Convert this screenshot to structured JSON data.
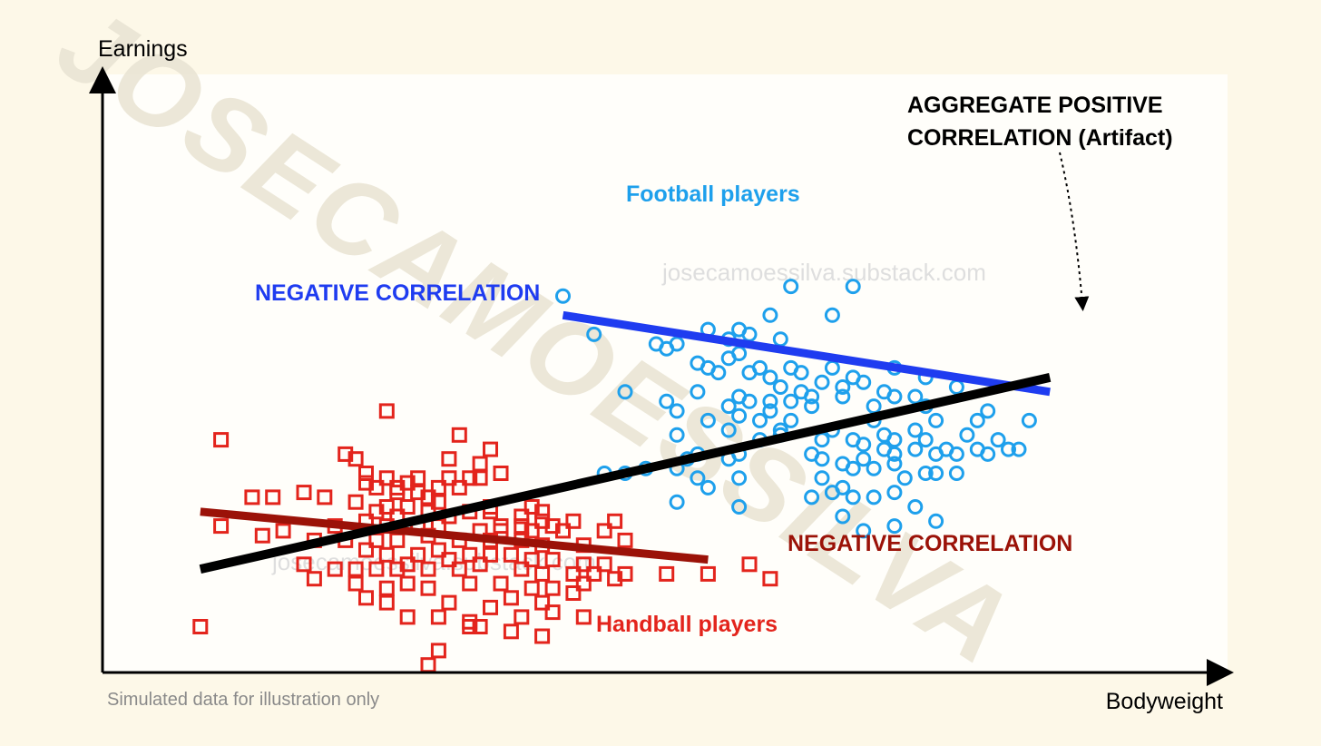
{
  "chart_data": {
    "type": "scatter",
    "title": "",
    "xlabel": "Bodyweight",
    "ylabel": "Earnings",
    "xlim": [
      0,
      100
    ],
    "ylim": [
      0,
      100
    ],
    "grid": false,
    "note": "Simulated data for illustration only",
    "watermark_big": "JOSECAMOESSILVA",
    "watermark_small": "josecamoessilva.substack.com",
    "series": [
      {
        "name": "Football players",
        "marker": "circle",
        "color": "#1ea0ec",
        "points": [
          [
            44,
            78
          ],
          [
            66,
            80
          ],
          [
            72,
            80
          ],
          [
            64,
            74
          ],
          [
            70,
            74
          ],
          [
            47,
            70
          ],
          [
            58,
            71
          ],
          [
            61,
            71
          ],
          [
            62,
            70
          ],
          [
            60,
            69
          ],
          [
            65,
            69
          ],
          [
            53,
            68
          ],
          [
            55,
            68
          ],
          [
            54,
            67
          ],
          [
            61,
            66
          ],
          [
            60,
            65
          ],
          [
            57,
            64
          ],
          [
            63,
            63
          ],
          [
            58,
            63
          ],
          [
            66,
            63
          ],
          [
            70,
            63
          ],
          [
            76,
            63
          ],
          [
            59,
            62
          ],
          [
            62,
            62
          ],
          [
            64,
            61
          ],
          [
            72,
            61
          ],
          [
            67,
            62
          ],
          [
            69,
            60
          ],
          [
            65,
            59
          ],
          [
            79,
            61
          ],
          [
            73,
            60
          ],
          [
            71,
            59
          ],
          [
            50,
            58
          ],
          [
            57,
            58
          ],
          [
            67,
            58
          ],
          [
            75,
            58
          ],
          [
            61,
            57
          ],
          [
            68,
            57
          ],
          [
            76,
            57
          ],
          [
            78,
            57
          ],
          [
            82,
            59
          ],
          [
            54,
            56
          ],
          [
            62,
            56
          ],
          [
            64,
            56
          ],
          [
            66,
            56
          ],
          [
            71,
            57
          ],
          [
            55,
            54
          ],
          [
            60,
            55
          ],
          [
            64,
            54
          ],
          [
            68,
            55
          ],
          [
            74,
            55
          ],
          [
            79,
            55
          ],
          [
            85,
            54
          ],
          [
            58,
            52
          ],
          [
            61,
            53
          ],
          [
            63,
            52
          ],
          [
            66,
            52
          ],
          [
            74,
            52
          ],
          [
            80,
            52
          ],
          [
            84,
            52
          ],
          [
            89,
            52
          ],
          [
            60,
            50
          ],
          [
            65,
            50
          ],
          [
            70,
            50
          ],
          [
            75,
            49
          ],
          [
            78,
            50
          ],
          [
            83,
            49
          ],
          [
            55,
            49
          ],
          [
            63,
            48
          ],
          [
            65,
            49
          ],
          [
            69,
            48
          ],
          [
            72,
            48
          ],
          [
            76,
            48
          ],
          [
            79,
            48
          ],
          [
            86,
            48
          ],
          [
            73,
            47
          ],
          [
            75,
            46
          ],
          [
            78,
            46
          ],
          [
            81,
            46
          ],
          [
            84,
            46
          ],
          [
            87,
            46
          ],
          [
            88,
            46
          ],
          [
            76,
            45
          ],
          [
            80,
            45
          ],
          [
            82,
            45
          ],
          [
            57,
            45
          ],
          [
            61,
            45
          ],
          [
            68,
            45
          ],
          [
            69,
            44
          ],
          [
            73,
            44
          ],
          [
            76,
            43
          ],
          [
            85,
            45
          ],
          [
            56,
            44
          ],
          [
            60,
            44
          ],
          [
            71,
            43
          ],
          [
            74,
            42
          ],
          [
            72,
            42
          ],
          [
            79,
            41
          ],
          [
            80,
            41
          ],
          [
            82,
            41
          ],
          [
            52,
            42
          ],
          [
            55,
            42
          ],
          [
            50,
            41
          ],
          [
            48,
            41
          ],
          [
            57,
            40
          ],
          [
            61,
            40
          ],
          [
            69,
            40
          ],
          [
            71,
            38
          ],
          [
            77,
            40
          ],
          [
            70,
            37
          ],
          [
            76,
            37
          ],
          [
            58,
            38
          ],
          [
            72,
            36
          ],
          [
            68,
            36
          ],
          [
            74,
            36
          ],
          [
            78,
            34
          ],
          [
            55,
            35
          ],
          [
            61,
            34
          ],
          [
            71,
            32
          ],
          [
            80,
            31
          ],
          [
            76,
            30
          ],
          [
            73,
            29
          ]
        ]
      },
      {
        "name": "Handball players",
        "marker": "square",
        "color": "#e3241c",
        "points": [
          [
            27,
            54
          ],
          [
            11,
            48
          ],
          [
            34,
            49
          ],
          [
            37,
            46
          ],
          [
            23,
            45
          ],
          [
            24,
            44
          ],
          [
            33,
            44
          ],
          [
            36,
            43
          ],
          [
            25,
            41
          ],
          [
            38,
            41
          ],
          [
            27,
            40
          ],
          [
            30,
            40
          ],
          [
            33,
            40
          ],
          [
            35,
            40
          ],
          [
            36,
            40
          ],
          [
            25,
            39
          ],
          [
            26,
            38
          ],
          [
            28,
            38
          ],
          [
            29,
            39
          ],
          [
            32,
            38
          ],
          [
            34,
            38
          ],
          [
            14,
            36
          ],
          [
            16,
            36
          ],
          [
            19,
            37
          ],
          [
            21,
            36
          ],
          [
            28,
            37
          ],
          [
            30,
            37
          ],
          [
            31,
            36
          ],
          [
            24,
            35
          ],
          [
            27,
            34
          ],
          [
            29,
            34
          ],
          [
            32,
            35
          ],
          [
            35,
            33
          ],
          [
            37,
            34
          ],
          [
            41,
            34
          ],
          [
            42,
            33
          ],
          [
            26,
            33
          ],
          [
            28,
            32
          ],
          [
            31,
            33
          ],
          [
            33,
            32
          ],
          [
            37,
            33
          ],
          [
            40,
            32
          ],
          [
            42,
            31
          ],
          [
            45,
            31
          ],
          [
            49,
            31
          ],
          [
            38,
            30
          ],
          [
            40,
            30
          ],
          [
            43,
            30
          ],
          [
            11,
            30
          ],
          [
            17,
            29
          ],
          [
            22,
            30
          ],
          [
            25,
            31
          ],
          [
            27,
            30
          ],
          [
            30,
            30
          ],
          [
            32,
            30
          ],
          [
            36,
            29
          ],
          [
            38,
            29
          ],
          [
            41,
            29
          ],
          [
            44,
            29
          ],
          [
            48,
            29
          ],
          [
            15,
            28
          ],
          [
            20,
            27
          ],
          [
            23,
            27
          ],
          [
            26,
            27
          ],
          [
            28,
            27
          ],
          [
            31,
            28
          ],
          [
            34,
            27
          ],
          [
            37,
            27
          ],
          [
            40,
            27
          ],
          [
            42,
            26
          ],
          [
            46,
            26
          ],
          [
            50,
            27
          ],
          [
            25,
            25
          ],
          [
            27,
            24
          ],
          [
            30,
            24
          ],
          [
            32,
            25
          ],
          [
            35,
            24
          ],
          [
            37,
            24
          ],
          [
            39,
            24
          ],
          [
            41,
            23
          ],
          [
            43,
            23
          ],
          [
            46,
            22
          ],
          [
            48,
            22
          ],
          [
            33,
            23
          ],
          [
            29,
            22
          ],
          [
            31,
            21
          ],
          [
            34,
            21
          ],
          [
            19,
            22
          ],
          [
            22,
            21
          ],
          [
            24,
            21
          ],
          [
            26,
            21
          ],
          [
            28,
            21
          ],
          [
            36,
            22
          ],
          [
            40,
            21
          ],
          [
            42,
            20
          ],
          [
            45,
            20
          ],
          [
            47,
            20
          ],
          [
            50,
            20
          ],
          [
            54,
            20
          ],
          [
            58,
            20
          ],
          [
            20,
            19
          ],
          [
            24,
            18
          ],
          [
            27,
            17
          ],
          [
            29,
            18
          ],
          [
            31,
            17
          ],
          [
            35,
            18
          ],
          [
            38,
            18
          ],
          [
            41,
            17
          ],
          [
            43,
            17
          ],
          [
            46,
            18
          ],
          [
            49,
            19
          ],
          [
            64,
            19
          ],
          [
            62,
            22
          ],
          [
            39,
            15
          ],
          [
            42,
            14
          ],
          [
            45,
            16
          ],
          [
            25,
            15
          ],
          [
            27,
            14
          ],
          [
            33,
            14
          ],
          [
            37,
            13
          ],
          [
            40,
            11
          ],
          [
            43,
            12
          ],
          [
            46,
            11
          ],
          [
            35,
            10
          ],
          [
            36,
            9
          ],
          [
            29,
            11
          ],
          [
            32,
            11
          ],
          [
            35,
            9
          ],
          [
            39,
            8
          ],
          [
            9,
            9
          ],
          [
            42,
            7
          ],
          [
            32,
            4
          ],
          [
            31,
            1
          ]
        ]
      }
    ],
    "lines": [
      {
        "name": "football-trend",
        "color": "#1f3cf0",
        "x": [
          44,
          91
        ],
        "y": [
          74,
          58
        ]
      },
      {
        "name": "handball-trend",
        "color": "#9b1208",
        "x": [
          9,
          58
        ],
        "y": [
          33,
          23
        ]
      },
      {
        "name": "aggregate-trend",
        "color": "#000000",
        "x": [
          9,
          91
        ],
        "y": [
          21,
          61
        ]
      }
    ],
    "annotations": [
      {
        "name": "football-label",
        "text": "Football players",
        "color": "#1ea0ec"
      },
      {
        "name": "handball-label",
        "text": "Handball players",
        "color": "#e3241c"
      },
      {
        "name": "neg-blue-label",
        "text": "NEGATIVE CORRELATION",
        "color": "#1f3cf0"
      },
      {
        "name": "neg-red-label",
        "text": "NEGATIVE CORRELATION",
        "color": "#9b1208"
      },
      {
        "name": "aggregate-label-line1",
        "text": "AGGREGATE POSITIVE",
        "color": "#000000"
      },
      {
        "name": "aggregate-label-line2",
        "text": "CORRELATION (Artifact)",
        "color": "#000000"
      }
    ]
  },
  "colors": {
    "background": "#fdf8e8",
    "plot_background": "#fffefa",
    "watermark": "#e8e3d2",
    "note": "#8a8a8a"
  }
}
